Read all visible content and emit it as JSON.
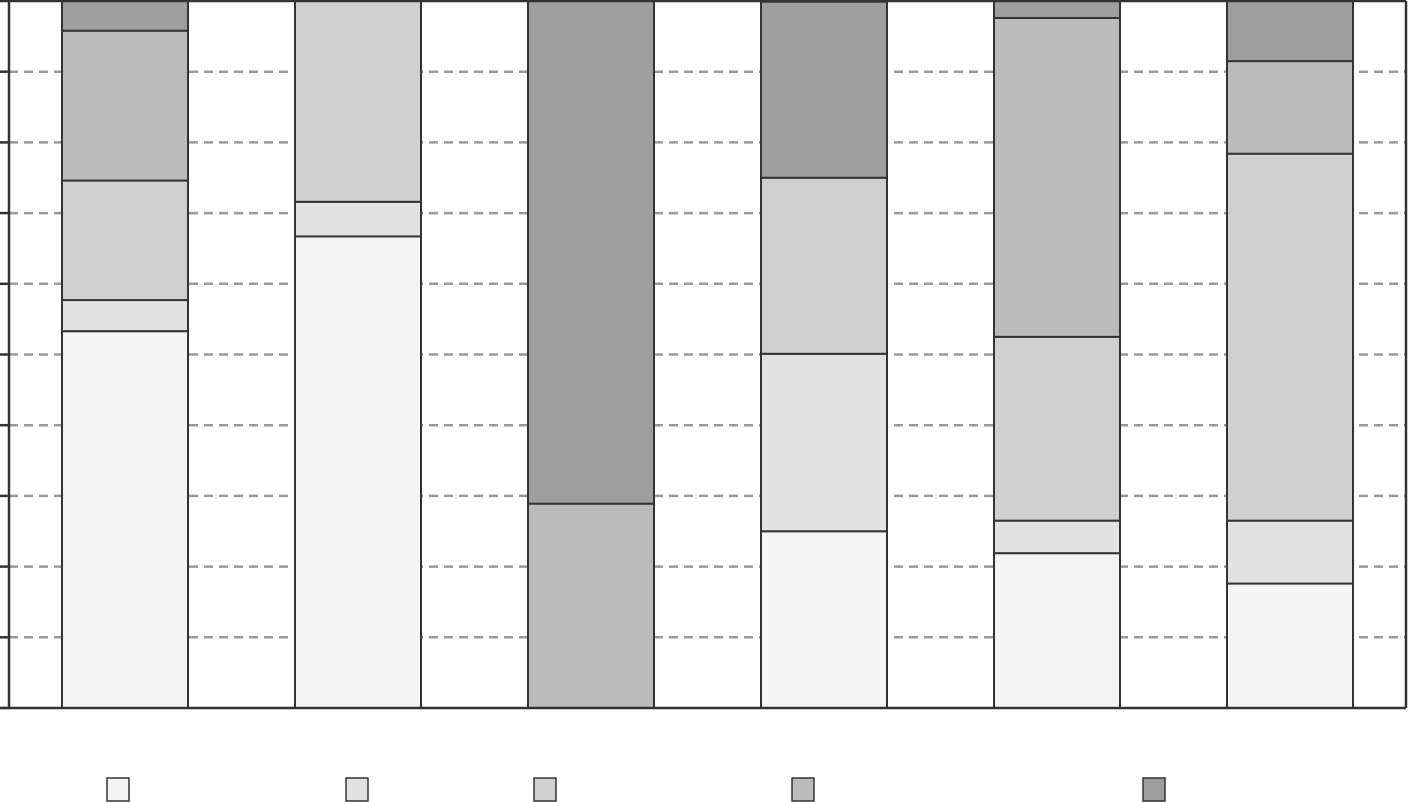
{
  "chart_data": {
    "type": "bar",
    "stacked": true,
    "orientation": "vertical",
    "title": "",
    "xlabel": "",
    "ylabel": "",
    "ylim": [
      0,
      1
    ],
    "yticks": [
      0,
      0.1,
      0.2,
      0.3,
      0.4,
      0.5,
      0.6,
      0.7,
      0.8,
      0.9,
      1.0
    ],
    "grid": true,
    "legend_position": "bottom",
    "categories": [
      "",
      "",
      "",
      "",
      "",
      ""
    ],
    "series": [
      {
        "color": "#f4f4f4",
        "values": [
          0.533,
          0.667,
          0.0,
          0.25,
          0.219,
          0.176
        ]
      },
      {
        "color": "#e2e2e2",
        "values": [
          0.044,
          0.049,
          0.0,
          0.251,
          0.046,
          0.089
        ]
      },
      {
        "color": "#d0d0d0",
        "values": [
          0.169,
          0.285,
          0.0,
          0.249,
          0.26,
          0.519
        ]
      },
      {
        "color": "#bbbbbb",
        "values": [
          0.212,
          0.0,
          0.289,
          0.0,
          0.451,
          0.131
        ]
      },
      {
        "color": "#9e9e9e",
        "values": [
          0.042,
          0.0,
          0.711,
          0.249,
          0.024,
          0.086
        ]
      }
    ]
  }
}
